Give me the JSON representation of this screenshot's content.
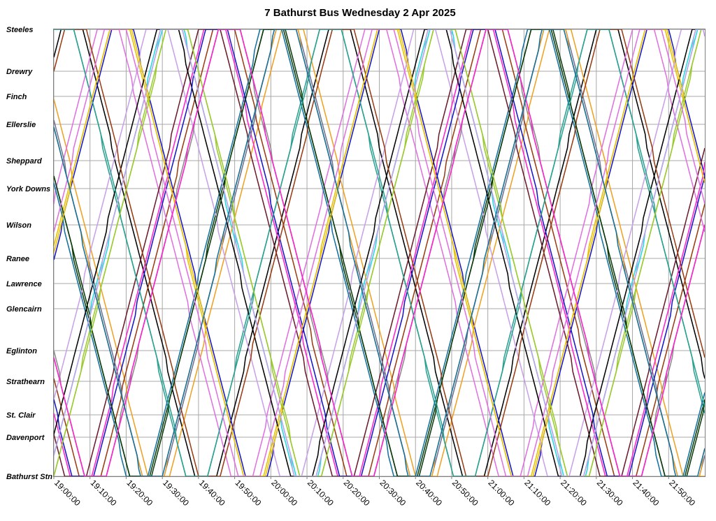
{
  "chart_data": {
    "type": "line",
    "title": "7 Bathurst Bus Wednesday 2 Apr 2025",
    "x_ticks": [
      "19:00:00",
      "19:10:00",
      "19:20:00",
      "19:30:00",
      "19:40:00",
      "19:50:00",
      "20:00:00",
      "20:10:00",
      "20:20:00",
      "20:30:00",
      "20:40:00",
      "20:50:00",
      "21:00:00",
      "21:10:00",
      "21:20:00",
      "21:30:00",
      "21:40:00",
      "21:50:00"
    ],
    "xlim": [
      "19:00:00",
      "22:00:00"
    ],
    "stops": [
      {
        "name": "Steeles",
        "km": 0.0
      },
      {
        "name": "Drewry",
        "km": 1.5
      },
      {
        "name": "Finch",
        "km": 2.4
      },
      {
        "name": "Ellerslie",
        "km": 3.4
      },
      {
        "name": "Sheppard",
        "km": 4.7
      },
      {
        "name": "York Downs",
        "km": 5.7
      },
      {
        "name": "Wilson",
        "km": 7.0
      },
      {
        "name": "Ranee",
        "km": 8.2
      },
      {
        "name": "Lawrence",
        "km": 9.1
      },
      {
        "name": "Glencairn",
        "km": 10.0
      },
      {
        "name": "Eglinton",
        "km": 11.5
      },
      {
        "name": "Strathearn",
        "km": 12.6
      },
      {
        "name": "St. Clair",
        "km": 13.8
      },
      {
        "name": "Davenport",
        "km": 14.6
      },
      {
        "name": "Bathurst Stn",
        "km": 16.0
      }
    ],
    "ylim": [
      0,
      16.0
    ],
    "grid": true,
    "legend": "none",
    "trip_duration_min": 31,
    "layover_min": 6,
    "colors": [
      "#000000",
      "#1515c8",
      "#20d8e0",
      "#8a8a8a",
      "#f0a020",
      "#9a3a10",
      "#0a3a0a",
      "#2aa090",
      "#e8c000",
      "#9aca30",
      "#e070e0",
      "#c8a0e8",
      "#ff20d0",
      "#1070a0",
      "#6a1a2a",
      "#707090"
    ],
    "series": [
      {
        "start": "18:25",
        "km0": 16.0
      },
      {
        "start": "18:33",
        "km0": 13.0
      },
      {
        "start": "18:41",
        "km0": 10.0
      },
      {
        "start": "18:49",
        "km0": 6.0
      },
      {
        "start": "18:57",
        "km0": 1.0
      },
      {
        "start": "19:05",
        "km0": 15.0
      },
      {
        "start": "19:13",
        "km0": 12.0
      },
      {
        "start": "19:21",
        "km0": 8.0
      },
      {
        "start": "19:29",
        "km0": 4.0
      },
      {
        "start": "19:37",
        "km0": 0.0
      },
      {
        "start": "19:45",
        "km0": 14.0
      },
      {
        "start": "19:53",
        "km0": 11.0
      },
      {
        "start": "20:01",
        "km0": 7.0
      },
      {
        "start": "20:09",
        "km0": 3.0
      },
      {
        "start": "20:17",
        "km0": 16.0
      },
      {
        "start": "20:25",
        "km0": 9.0
      },
      {
        "start": "18:30",
        "km0": 5.0
      },
      {
        "start": "18:38",
        "km0": 2.0
      },
      {
        "start": "18:46",
        "km0": 12.5
      },
      {
        "start": "18:54",
        "km0": 8.5
      },
      {
        "start": "19:02",
        "km0": 4.5
      },
      {
        "start": "19:10",
        "km0": 0.5
      },
      {
        "start": "19:18",
        "km0": 14.5
      },
      {
        "start": "19:26",
        "km0": 10.5
      },
      {
        "start": "19:34",
        "km0": 6.5
      },
      {
        "start": "19:42",
        "km0": 2.5
      },
      {
        "start": "19:50",
        "km0": 15.5
      },
      {
        "start": "19:58",
        "km0": 11.5
      },
      {
        "start": "20:06",
        "km0": 7.5
      },
      {
        "start": "20:14",
        "km0": 3.5
      }
    ]
  }
}
